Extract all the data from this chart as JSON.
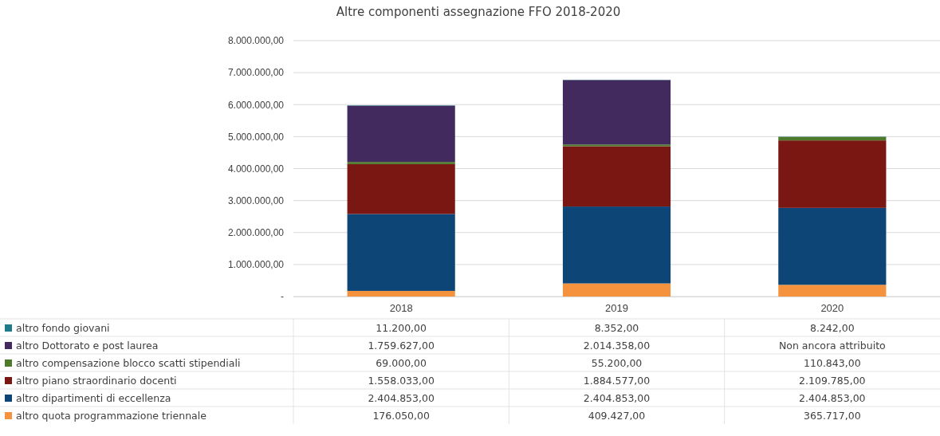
{
  "chart_data": {
    "type": "bar",
    "stacked": true,
    "title": "Altre componenti assegnazione FFO 2018-2020",
    "categories": [
      "2018",
      "2019",
      "2020"
    ],
    "series": [
      {
        "name": "altro quota programmazione triennale",
        "color": "#f5923e",
        "values": [
          176050,
          409427,
          365717
        ],
        "value_labels": [
          "176.050,00",
          "409.427,00",
          "365.717,00"
        ]
      },
      {
        "name": "altro dipartimenti di eccellenza",
        "color": "#0d4577",
        "values": [
          2404853,
          2404853,
          2404853
        ],
        "value_labels": [
          "2.404.853,00",
          "2.404.853,00",
          "2.404.853,00"
        ]
      },
      {
        "name": "altro piano straordinario docenti",
        "color": "#7b1712",
        "values": [
          1558033,
          1884577,
          2109785
        ],
        "value_labels": [
          "1.558.033,00",
          "1.884.577,00",
          "2.109.785,00"
        ]
      },
      {
        "name": "altro compensazione blocco scatti stipendiali",
        "color": "#4e7a2c",
        "values": [
          69000,
          55200,
          110843
        ],
        "value_labels": [
          "69.000,00",
          "55.200,00",
          "110.843,00"
        ]
      },
      {
        "name": "altro Dottorato e post laurea",
        "color": "#432a5e",
        "values": [
          1759627,
          2014358,
          null
        ],
        "value_labels": [
          "1.759.627,00",
          "2.014.358,00",
          "Non ancora attribuito"
        ]
      },
      {
        "name": "altro fondo giovani",
        "color": "#1f7a8c",
        "values": [
          11200,
          8352,
          8242
        ],
        "value_labels": [
          "11.200,00",
          "8.352,00",
          "8.242,00"
        ]
      }
    ],
    "ylim": [
      0,
      8000000
    ],
    "yticks": [
      {
        "value": 0,
        "label": "-"
      },
      {
        "value": 1000000,
        "label": "1.000.000,00"
      },
      {
        "value": 2000000,
        "label": "2.000.000,00"
      },
      {
        "value": 3000000,
        "label": "3.000.000,00"
      },
      {
        "value": 4000000,
        "label": "4.000.000,00"
      },
      {
        "value": 5000000,
        "label": "5.000.000,00"
      },
      {
        "value": 6000000,
        "label": "6.000.000,00"
      },
      {
        "value": 7000000,
        "label": "7.000.000,00"
      },
      {
        "value": 8000000,
        "label": "8.000.000,00"
      }
    ],
    "grid": "y",
    "legend": "bottom"
  }
}
